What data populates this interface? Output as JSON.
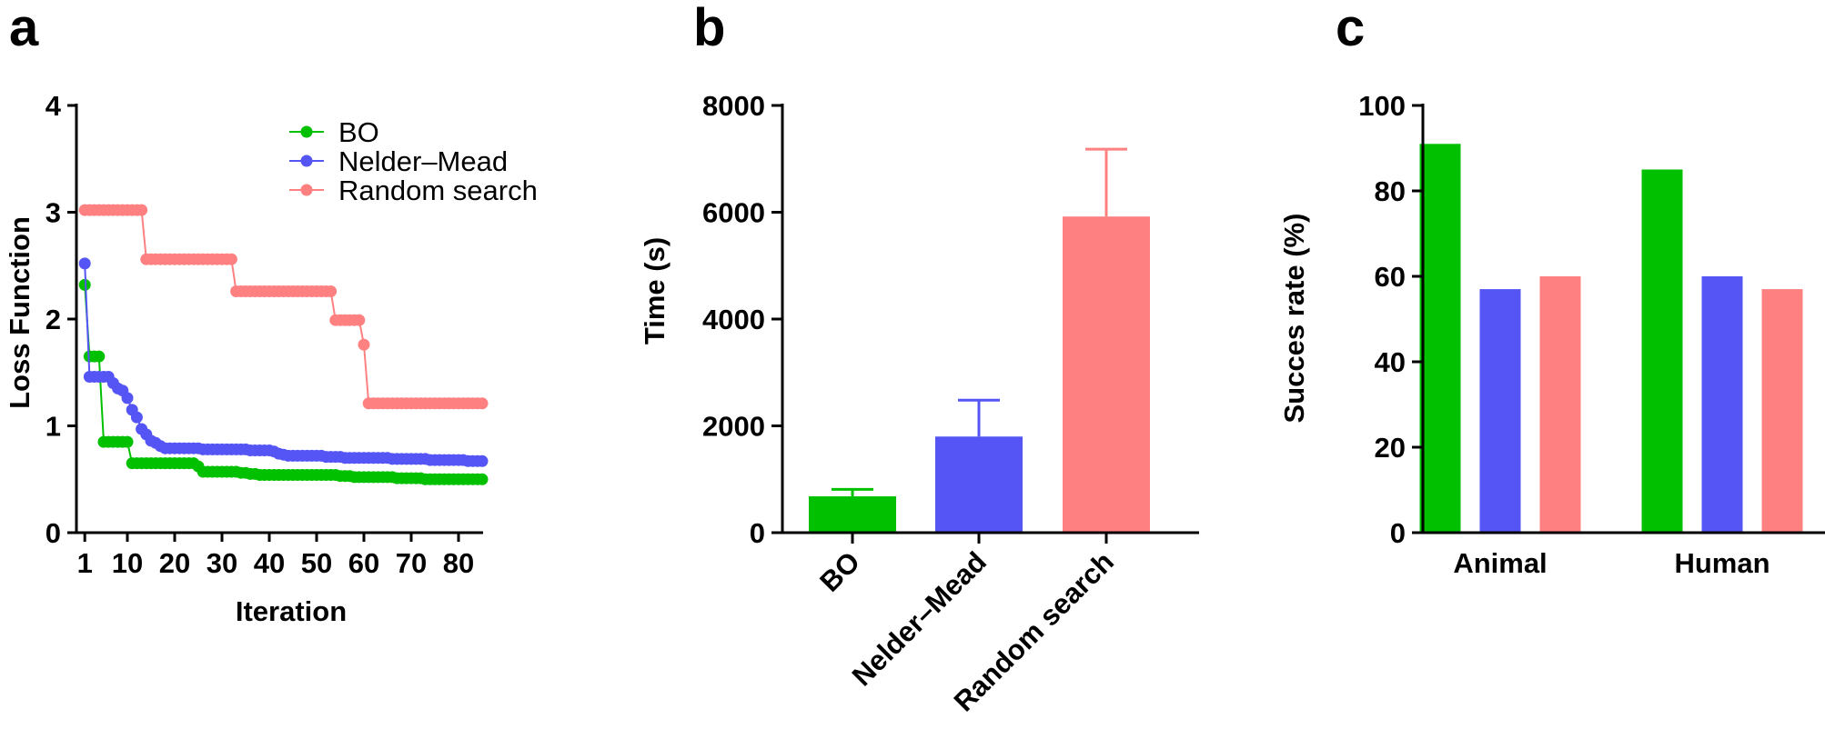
{
  "colors": {
    "bo": "#00c000",
    "nelder_mead": "#5555f5",
    "random_search": "#ff8080",
    "axis": "#000000"
  },
  "chart_data": [
    {
      "panel": "a",
      "type": "line",
      "xlabel": "Iteration",
      "ylabel": "Loss Function",
      "xlim": [
        0,
        86
      ],
      "ylim": [
        0,
        4
      ],
      "xticks": [
        1,
        10,
        20,
        30,
        40,
        50,
        60,
        70,
        80
      ],
      "yticks": [
        0,
        1,
        2,
        3,
        4
      ],
      "legend_position": "top-right",
      "series": [
        {
          "name": "BO",
          "color": "#00c000",
          "points": [
            [
              1,
              2.32
            ],
            [
              2,
              1.65
            ],
            [
              3,
              1.65
            ],
            [
              4,
              1.65
            ],
            [
              5,
              0.85
            ],
            [
              6,
              0.85
            ],
            [
              7,
              0.85
            ],
            [
              8,
              0.85
            ],
            [
              9,
              0.85
            ],
            [
              10,
              0.85
            ],
            [
              11,
              0.65
            ],
            [
              12,
              0.65
            ],
            [
              13,
              0.65
            ],
            [
              14,
              0.65
            ],
            [
              15,
              0.65
            ],
            [
              16,
              0.65
            ],
            [
              17,
              0.65
            ],
            [
              18,
              0.65
            ],
            [
              19,
              0.65
            ],
            [
              20,
              0.65
            ],
            [
              21,
              0.65
            ],
            [
              22,
              0.65
            ],
            [
              23,
              0.65
            ],
            [
              24,
              0.65
            ],
            [
              25,
              0.62
            ],
            [
              26,
              0.57
            ],
            [
              27,
              0.57
            ],
            [
              28,
              0.57
            ],
            [
              29,
              0.57
            ],
            [
              30,
              0.57
            ],
            [
              31,
              0.57
            ],
            [
              32,
              0.57
            ],
            [
              33,
              0.57
            ],
            [
              34,
              0.56
            ],
            [
              35,
              0.56
            ],
            [
              36,
              0.55
            ],
            [
              37,
              0.55
            ],
            [
              38,
              0.54
            ],
            [
              39,
              0.54
            ],
            [
              40,
              0.54
            ],
            [
              41,
              0.54
            ],
            [
              42,
              0.54
            ],
            [
              43,
              0.54
            ],
            [
              44,
              0.54
            ],
            [
              45,
              0.54
            ],
            [
              46,
              0.54
            ],
            [
              47,
              0.54
            ],
            [
              48,
              0.54
            ],
            [
              49,
              0.54
            ],
            [
              50,
              0.54
            ],
            [
              51,
              0.54
            ],
            [
              52,
              0.54
            ],
            [
              53,
              0.54
            ],
            [
              54,
              0.54
            ],
            [
              55,
              0.53
            ],
            [
              56,
              0.53
            ],
            [
              57,
              0.53
            ],
            [
              58,
              0.52
            ],
            [
              59,
              0.52
            ],
            [
              60,
              0.52
            ],
            [
              61,
              0.52
            ],
            [
              62,
              0.52
            ],
            [
              63,
              0.52
            ],
            [
              64,
              0.52
            ],
            [
              65,
              0.52
            ],
            [
              66,
              0.52
            ],
            [
              67,
              0.51
            ],
            [
              68,
              0.51
            ],
            [
              69,
              0.51
            ],
            [
              70,
              0.51
            ],
            [
              71,
              0.51
            ],
            [
              72,
              0.51
            ],
            [
              73,
              0.5
            ],
            [
              74,
              0.5
            ],
            [
              75,
              0.5
            ],
            [
              76,
              0.5
            ],
            [
              77,
              0.5
            ],
            [
              78,
              0.5
            ],
            [
              79,
              0.5
            ],
            [
              80,
              0.5
            ],
            [
              81,
              0.5
            ],
            [
              82,
              0.5
            ],
            [
              83,
              0.5
            ],
            [
              84,
              0.5
            ],
            [
              85,
              0.5
            ]
          ]
        },
        {
          "name": "Nelder–Mead",
          "color": "#5555f5",
          "points": [
            [
              1,
              2.52
            ],
            [
              2,
              1.46
            ],
            [
              3,
              1.46
            ],
            [
              4,
              1.46
            ],
            [
              5,
              1.46
            ],
            [
              6,
              1.46
            ],
            [
              7,
              1.4
            ],
            [
              8,
              1.35
            ],
            [
              9,
              1.33
            ],
            [
              10,
              1.26
            ],
            [
              11,
              1.15
            ],
            [
              12,
              1.08
            ],
            [
              13,
              0.97
            ],
            [
              14,
              0.92
            ],
            [
              15,
              0.86
            ],
            [
              16,
              0.84
            ],
            [
              17,
              0.81
            ],
            [
              18,
              0.79
            ],
            [
              19,
              0.79
            ],
            [
              20,
              0.79
            ],
            [
              21,
              0.79
            ],
            [
              22,
              0.79
            ],
            [
              23,
              0.79
            ],
            [
              24,
              0.79
            ],
            [
              25,
              0.79
            ],
            [
              26,
              0.78
            ],
            [
              27,
              0.78
            ],
            [
              28,
              0.78
            ],
            [
              29,
              0.78
            ],
            [
              30,
              0.78
            ],
            [
              31,
              0.78
            ],
            [
              32,
              0.78
            ],
            [
              33,
              0.78
            ],
            [
              34,
              0.78
            ],
            [
              35,
              0.78
            ],
            [
              36,
              0.77
            ],
            [
              37,
              0.77
            ],
            [
              38,
              0.77
            ],
            [
              39,
              0.77
            ],
            [
              40,
              0.77
            ],
            [
              41,
              0.76
            ],
            [
              42,
              0.74
            ],
            [
              43,
              0.73
            ],
            [
              44,
              0.72
            ],
            [
              45,
              0.72
            ],
            [
              46,
              0.72
            ],
            [
              47,
              0.72
            ],
            [
              48,
              0.72
            ],
            [
              49,
              0.72
            ],
            [
              50,
              0.72
            ],
            [
              51,
              0.72
            ],
            [
              52,
              0.71
            ],
            [
              53,
              0.71
            ],
            [
              54,
              0.71
            ],
            [
              55,
              0.71
            ],
            [
              56,
              0.7
            ],
            [
              57,
              0.7
            ],
            [
              58,
              0.7
            ],
            [
              59,
              0.7
            ],
            [
              60,
              0.7
            ],
            [
              61,
              0.7
            ],
            [
              62,
              0.7
            ],
            [
              63,
              0.7
            ],
            [
              64,
              0.7
            ],
            [
              65,
              0.7
            ],
            [
              66,
              0.69
            ],
            [
              67,
              0.69
            ],
            [
              68,
              0.69
            ],
            [
              69,
              0.69
            ],
            [
              70,
              0.69
            ],
            [
              71,
              0.69
            ],
            [
              72,
              0.69
            ],
            [
              73,
              0.69
            ],
            [
              74,
              0.68
            ],
            [
              75,
              0.68
            ],
            [
              76,
              0.68
            ],
            [
              77,
              0.68
            ],
            [
              78,
              0.68
            ],
            [
              79,
              0.68
            ],
            [
              80,
              0.68
            ],
            [
              81,
              0.68
            ],
            [
              82,
              0.67
            ],
            [
              83,
              0.67
            ],
            [
              84,
              0.67
            ],
            [
              85,
              0.67
            ]
          ]
        },
        {
          "name": "Random search",
          "color": "#ff8080",
          "points": [
            [
              1,
              3.02
            ],
            [
              2,
              3.02
            ],
            [
              3,
              3.02
            ],
            [
              4,
              3.02
            ],
            [
              5,
              3.02
            ],
            [
              6,
              3.02
            ],
            [
              7,
              3.02
            ],
            [
              8,
              3.02
            ],
            [
              9,
              3.02
            ],
            [
              10,
              3.02
            ],
            [
              11,
              3.02
            ],
            [
              12,
              3.02
            ],
            [
              13,
              3.02
            ],
            [
              14,
              2.56
            ],
            [
              15,
              2.56
            ],
            [
              16,
              2.56
            ],
            [
              17,
              2.56
            ],
            [
              18,
              2.56
            ],
            [
              19,
              2.56
            ],
            [
              20,
              2.56
            ],
            [
              21,
              2.56
            ],
            [
              22,
              2.56
            ],
            [
              23,
              2.56
            ],
            [
              24,
              2.56
            ],
            [
              25,
              2.56
            ],
            [
              26,
              2.56
            ],
            [
              27,
              2.56
            ],
            [
              28,
              2.56
            ],
            [
              29,
              2.56
            ],
            [
              30,
              2.56
            ],
            [
              31,
              2.56
            ],
            [
              32,
              2.56
            ],
            [
              33,
              2.26
            ],
            [
              34,
              2.26
            ],
            [
              35,
              2.26
            ],
            [
              36,
              2.26
            ],
            [
              37,
              2.26
            ],
            [
              38,
              2.26
            ],
            [
              39,
              2.26
            ],
            [
              40,
              2.26
            ],
            [
              41,
              2.26
            ],
            [
              42,
              2.26
            ],
            [
              43,
              2.26
            ],
            [
              44,
              2.26
            ],
            [
              45,
              2.26
            ],
            [
              46,
              2.26
            ],
            [
              47,
              2.26
            ],
            [
              48,
              2.26
            ],
            [
              49,
              2.26
            ],
            [
              50,
              2.26
            ],
            [
              51,
              2.26
            ],
            [
              52,
              2.26
            ],
            [
              53,
              2.26
            ],
            [
              54,
              1.99
            ],
            [
              55,
              1.99
            ],
            [
              56,
              1.99
            ],
            [
              57,
              1.99
            ],
            [
              58,
              1.99
            ],
            [
              59,
              1.99
            ],
            [
              60,
              1.76
            ],
            [
              61,
              1.21
            ],
            [
              62,
              1.21
            ],
            [
              63,
              1.21
            ],
            [
              64,
              1.21
            ],
            [
              65,
              1.21
            ],
            [
              66,
              1.21
            ],
            [
              67,
              1.21
            ],
            [
              68,
              1.21
            ],
            [
              69,
              1.21
            ],
            [
              70,
              1.21
            ],
            [
              71,
              1.21
            ],
            [
              72,
              1.21
            ],
            [
              73,
              1.21
            ],
            [
              74,
              1.21
            ],
            [
              75,
              1.21
            ],
            [
              76,
              1.21
            ],
            [
              77,
              1.21
            ],
            [
              78,
              1.21
            ],
            [
              79,
              1.21
            ],
            [
              80,
              1.21
            ],
            [
              81,
              1.21
            ],
            [
              82,
              1.21
            ],
            [
              83,
              1.21
            ],
            [
              84,
              1.21
            ],
            [
              85,
              1.21
            ]
          ]
        }
      ]
    },
    {
      "panel": "b",
      "type": "bar",
      "xlabel": "",
      "ylabel": "Time (s)",
      "ylim": [
        0,
        8000
      ],
      "yticks": [
        0,
        2000,
        4000,
        6000,
        8000
      ],
      "categories": [
        "BO",
        "Nelder–Mead",
        "Random search"
      ],
      "values": [
        680,
        1800,
        5920
      ],
      "error_upper": [
        810,
        2480,
        7180
      ],
      "bar_colors": [
        "#00c000",
        "#5555f5",
        "#ff8080"
      ]
    },
    {
      "panel": "c",
      "type": "bar",
      "xlabel": "",
      "ylabel": "Succes rate (%)",
      "ylim": [
        0,
        100
      ],
      "yticks": [
        0,
        20,
        40,
        60,
        80,
        100
      ],
      "categories": [
        "Animal",
        "Human"
      ],
      "series": [
        {
          "color": "#00c000",
          "values": [
            91,
            85
          ]
        },
        {
          "color": "#5555f5",
          "values": [
            57,
            60
          ]
        },
        {
          "color": "#ff8080",
          "values": [
            60,
            57
          ]
        }
      ]
    }
  ]
}
